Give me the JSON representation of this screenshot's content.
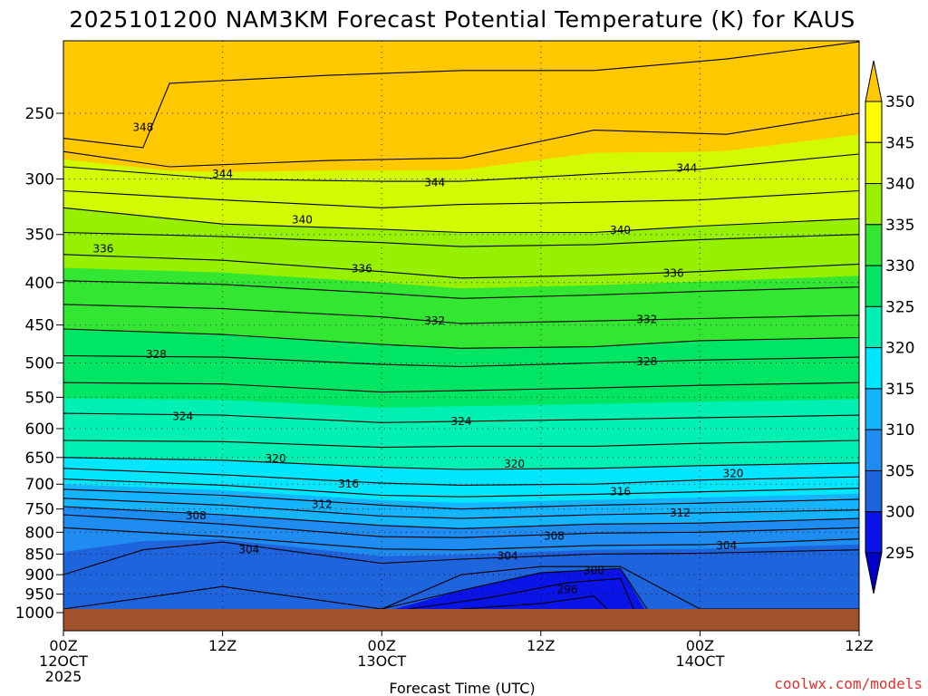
{
  "chart_data": {
    "type": "heatmap",
    "title": "2025101200 NAM3KM Forecast Potential Temperature (K) for KAUS",
    "xlabel": "Forecast Time (UTC)",
    "ylabel": "",
    "credit": "coolwx.com/models",
    "x_ticks": [
      {
        "hour": 0,
        "line1": "00Z",
        "line2": "12OCT",
        "line3": "2025"
      },
      {
        "hour": 12,
        "line1": "12Z",
        "line2": "",
        "line3": ""
      },
      {
        "hour": 24,
        "line1": "00Z",
        "line2": "13OCT",
        "line3": ""
      },
      {
        "hour": 36,
        "line1": "12Z",
        "line2": "",
        "line3": ""
      },
      {
        "hour": 48,
        "line1": "00Z",
        "line2": "14OCT",
        "line3": ""
      },
      {
        "hour": 60,
        "line1": "12Z",
        "line2": "",
        "line3": ""
      }
    ],
    "x_range_hours": [
      0,
      60
    ],
    "y_ticks": [
      250,
      300,
      350,
      400,
      450,
      500,
      550,
      600,
      650,
      700,
      750,
      800,
      850,
      900,
      950,
      1000
    ],
    "y_range_hpa": [
      200,
      1050
    ],
    "y_scale": "log",
    "colorbar": {
      "levels": [
        295,
        300,
        305,
        310,
        315,
        320,
        325,
        330,
        335,
        340,
        345,
        350
      ],
      "colors": [
        "#0000c8",
        "#0a14e6",
        "#1e64dc",
        "#1e8cf0",
        "#14b4ff",
        "#00e6ff",
        "#00f0b4",
        "#00e664",
        "#32e632",
        "#96f000",
        "#d2fa00",
        "#ffff00",
        "#ffc800"
      ]
    },
    "ground_color": "#a0522d",
    "contour_interval": 2,
    "series": [
      {
        "value": 348,
        "x": [
          0,
          6,
          8,
          20,
          30,
          40,
          50,
          60
        ],
        "y": [
          268,
          275,
          230,
          225,
          222,
          222,
          215,
          205
        ]
      },
      {
        "value": 346,
        "x": [
          0,
          8,
          20,
          30,
          40,
          50,
          60
        ],
        "y": [
          278,
          290,
          285,
          283,
          262,
          265,
          250
        ]
      },
      {
        "value": 344,
        "x": [
          0,
          12,
          24,
          30,
          40,
          48,
          60
        ],
        "y": [
          290,
          300,
          302,
          302,
          296,
          292,
          280
        ]
      },
      {
        "value": 342,
        "x": [
          0,
          12,
          24,
          30,
          40,
          48,
          60
        ],
        "y": [
          310,
          318,
          325,
          322,
          320,
          318,
          310
        ]
      },
      {
        "value": 340,
        "x": [
          0,
          12,
          24,
          30,
          40,
          48,
          60
        ],
        "y": [
          325,
          340,
          345,
          348,
          348,
          342,
          335
        ]
      },
      {
        "value": 338,
        "x": [
          0,
          12,
          24,
          30,
          40,
          48,
          60
        ],
        "y": [
          348,
          352,
          358,
          362,
          360,
          355,
          350
        ]
      },
      {
        "value": 336,
        "x": [
          0,
          12,
          24,
          30,
          40,
          48,
          60
        ],
        "y": [
          370,
          376,
          388,
          395,
          392,
          388,
          380
        ]
      },
      {
        "value": 334,
        "x": [
          0,
          12,
          24,
          30,
          40,
          48,
          60
        ],
        "y": [
          398,
          402,
          412,
          418,
          414,
          410,
          405
        ]
      },
      {
        "value": 332,
        "x": [
          0,
          12,
          24,
          30,
          40,
          48,
          60
        ],
        "y": [
          425,
          430,
          440,
          448,
          445,
          442,
          438
        ]
      },
      {
        "value": 330,
        "x": [
          0,
          12,
          24,
          30,
          40,
          48,
          60
        ],
        "y": [
          455,
          462,
          475,
          480,
          478,
          470,
          466
        ]
      },
      {
        "value": 328,
        "x": [
          0,
          12,
          24,
          30,
          40,
          48,
          60
        ],
        "y": [
          490,
          492,
          502,
          505,
          500,
          496,
          492
        ]
      },
      {
        "value": 326,
        "x": [
          0,
          12,
          24,
          30,
          40,
          48,
          60
        ],
        "y": [
          528,
          530,
          542,
          540,
          536,
          532,
          528
        ]
      },
      {
        "value": 324,
        "x": [
          0,
          12,
          24,
          30,
          40,
          48,
          60
        ],
        "y": [
          575,
          578,
          590,
          588,
          585,
          582,
          578
        ]
      },
      {
        "value": 322,
        "x": [
          0,
          12,
          24,
          30,
          40,
          48,
          60
        ],
        "y": [
          620,
          622,
          632,
          630,
          630,
          625,
          620
        ]
      },
      {
        "value": 320,
        "x": [
          0,
          12,
          24,
          30,
          40,
          48,
          60
        ],
        "y": [
          650,
          655,
          668,
          672,
          670,
          665,
          660
        ]
      },
      {
        "value": 318,
        "x": [
          0,
          12,
          24,
          30,
          40,
          48,
          60
        ],
        "y": [
          670,
          682,
          698,
          702,
          700,
          692,
          686
        ]
      },
      {
        "value": 316,
        "x": [
          0,
          12,
          24,
          30,
          40,
          48,
          60
        ],
        "y": [
          690,
          702,
          722,
          725,
          720,
          715,
          708
        ]
      },
      {
        "value": 314,
        "x": [
          0,
          12,
          24,
          30,
          40,
          48,
          60
        ],
        "y": [
          710,
          722,
          742,
          750,
          742,
          738,
          730
        ]
      },
      {
        "value": 312,
        "x": [
          0,
          12,
          24,
          30,
          40,
          48,
          60
        ],
        "y": [
          728,
          742,
          765,
          770,
          762,
          758,
          752
        ]
      },
      {
        "value": 310,
        "x": [
          0,
          12,
          24,
          30,
          40,
          48,
          60
        ],
        "y": [
          745,
          762,
          785,
          792,
          782,
          780,
          770
        ]
      },
      {
        "value": 308,
        "x": [
          0,
          12,
          24,
          30,
          40,
          48,
          60
        ],
        "y": [
          762,
          782,
          810,
          812,
          802,
          800,
          790
        ]
      },
      {
        "value": 306,
        "x": [
          0,
          12,
          24,
          30,
          40,
          48,
          60
        ],
        "y": [
          790,
          810,
          838,
          840,
          830,
          828,
          815
        ]
      },
      {
        "value": 304,
        "x": [
          0,
          6,
          12,
          24,
          30,
          40,
          48,
          60
        ],
        "y": [
          900,
          840,
          822,
          872,
          862,
          850,
          848,
          840
        ]
      },
      {
        "value": 302,
        "x": [
          0,
          6,
          12,
          24,
          30,
          36,
          42,
          48,
          60
        ],
        "y": [
          1000,
          960,
          930,
          1000,
          900,
          880,
          880,
          1000,
          1000
        ]
      },
      {
        "value": 300,
        "x": [
          24,
          30,
          36,
          42,
          44
        ],
        "y": [
          1000,
          940,
          895,
          885,
          1000
        ]
      },
      {
        "value": 298,
        "x": [
          26,
          32,
          38,
          42,
          43
        ],
        "y": [
          1000,
          960,
          920,
          910,
          1000
        ]
      },
      {
        "value": 296,
        "x": [
          30,
          36,
          40,
          41
        ],
        "y": [
          1000,
          975,
          955,
          1000
        ]
      }
    ],
    "labels": [
      {
        "value": 348,
        "x": 6.0,
        "y": 260
      },
      {
        "value": 344,
        "x": 12.0,
        "y": 296
      },
      {
        "value": 344,
        "x": 28.0,
        "y": 303
      },
      {
        "value": 344,
        "x": 47.0,
        "y": 291
      },
      {
        "value": 340,
        "x": 18.0,
        "y": 336
      },
      {
        "value": 340,
        "x": 42.0,
        "y": 346
      },
      {
        "value": 336,
        "x": 3.0,
        "y": 364
      },
      {
        "value": 336,
        "x": 22.5,
        "y": 385
      },
      {
        "value": 336,
        "x": 46.0,
        "y": 390
      },
      {
        "value": 332,
        "x": 28.0,
        "y": 445
      },
      {
        "value": 332,
        "x": 44.0,
        "y": 443
      },
      {
        "value": 328,
        "x": 7.0,
        "y": 488
      },
      {
        "value": 328,
        "x": 44.0,
        "y": 498
      },
      {
        "value": 324,
        "x": 9.0,
        "y": 580
      },
      {
        "value": 324,
        "x": 30.0,
        "y": 588
      },
      {
        "value": 320,
        "x": 16.0,
        "y": 652
      },
      {
        "value": 320,
        "x": 34.0,
        "y": 662
      },
      {
        "value": 320,
        "x": 50.5,
        "y": 680
      },
      {
        "value": 316,
        "x": 21.5,
        "y": 700
      },
      {
        "value": 316,
        "x": 42.0,
        "y": 715
      },
      {
        "value": 312,
        "x": 19.5,
        "y": 740
      },
      {
        "value": 312,
        "x": 46.5,
        "y": 758
      },
      {
        "value": 308,
        "x": 10.0,
        "y": 764
      },
      {
        "value": 308,
        "x": 37.0,
        "y": 808
      },
      {
        "value": 304,
        "x": 14.0,
        "y": 840
      },
      {
        "value": 304,
        "x": 33.5,
        "y": 855
      },
      {
        "value": 304,
        "x": 50.0,
        "y": 830
      },
      {
        "value": 300,
        "x": 40.0,
        "y": 890
      },
      {
        "value": 296,
        "x": 38.0,
        "y": 938
      }
    ],
    "grid": true
  }
}
